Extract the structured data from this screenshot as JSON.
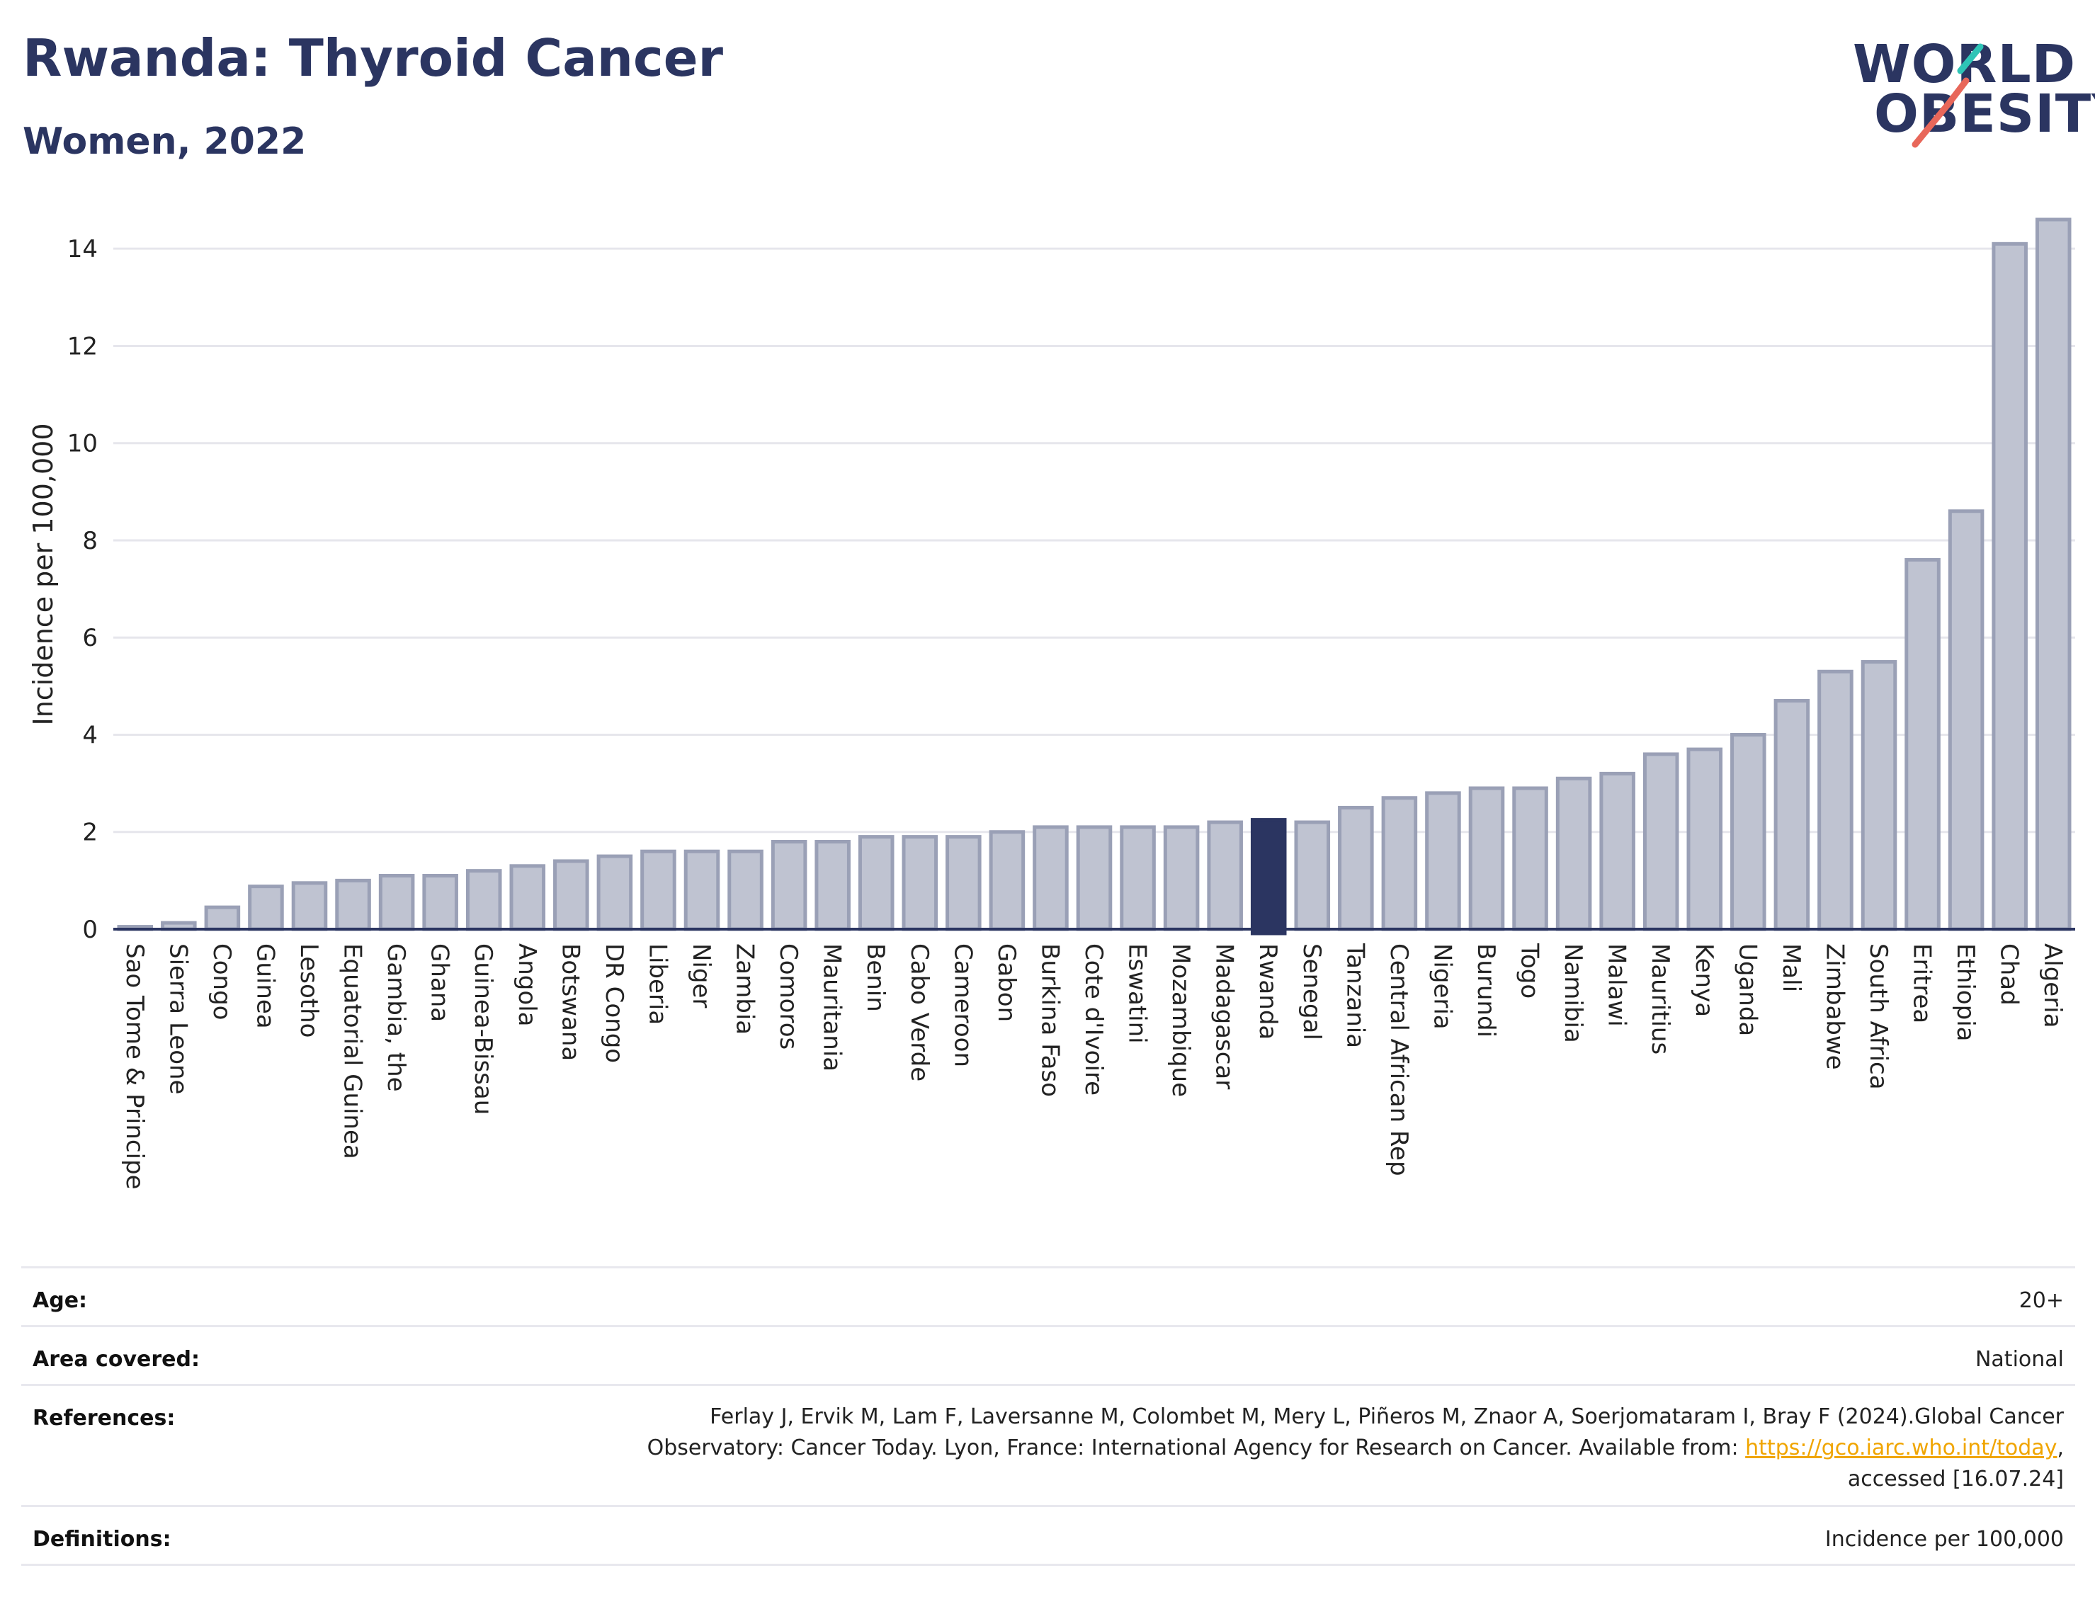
{
  "header": {
    "title": "Rwanda: Thyroid Cancer",
    "subtitle": "Women, 2022"
  },
  "logo": {
    "line1": "WORLD",
    "line2": "OBESITY",
    "slash_colors": [
      "#2ec4b6",
      "#e8675a"
    ]
  },
  "colors": {
    "bar_fill": "#bfc3d1",
    "bar_stroke": "#9aa0b6",
    "highlight_fill": "#2b3561",
    "axis": "#2b3561",
    "grid": "#e6e6ec",
    "text_dark": "#2b3561",
    "link": "#f0a500"
  },
  "chart_data": {
    "type": "bar",
    "title": "Rwanda: Thyroid Cancer",
    "subtitle": "Women, 2022",
    "ylabel": "Incidence per 100,000",
    "xlabel": "",
    "ylim": [
      0,
      14.6
    ],
    "yticks": [
      0,
      2,
      4,
      6,
      8,
      10,
      12,
      14
    ],
    "grid": true,
    "highlight": "Rwanda",
    "categories": [
      "Sao Tome & Principe",
      "Sierra Leone",
      "Congo",
      "Guinea",
      "Lesotho",
      "Equatorial Guinea",
      "Gambia, the",
      "Ghana",
      "Guinea-Bissau",
      "Angola",
      "Botswana",
      "DR Congo",
      "Liberia",
      "Niger",
      "Zambia",
      "Comoros",
      "Mauritania",
      "Benin",
      "Cabo Verde",
      "Cameroon",
      "Gabon",
      "Burkina Faso",
      "Cote d'Ivoire",
      "Eswatini",
      "Mozambique",
      "Madagascar",
      "Rwanda",
      "Senegal",
      "Tanzania",
      "Central African Rep",
      "Nigeria",
      "Burundi",
      "Togo",
      "Namibia",
      "Malawi",
      "Mauritius",
      "Kenya",
      "Uganda",
      "Mali",
      "Zimbabwe",
      "South Africa",
      "Eritrea",
      "Ethiopia",
      "Chad",
      "Algeria"
    ],
    "values": [
      0.05,
      0.13,
      0.45,
      0.88,
      0.95,
      1.0,
      1.1,
      1.1,
      1.2,
      1.3,
      1.4,
      1.5,
      1.6,
      1.6,
      1.6,
      1.8,
      1.8,
      1.9,
      1.9,
      1.9,
      2.0,
      2.1,
      2.1,
      2.1,
      2.1,
      2.2,
      2.25,
      2.2,
      2.5,
      2.7,
      2.8,
      2.9,
      2.9,
      3.1,
      3.2,
      3.6,
      3.7,
      4.0,
      4.7,
      5.3,
      5.5,
      7.6,
      8.6,
      14.1,
      14.6
    ]
  },
  "info": {
    "age_label": "Age:",
    "age_value": "20+",
    "area_label": "Area covered:",
    "area_value": "National",
    "references_label": "References:",
    "references_text1": "Ferlay J, Ervik M, Lam F, Laversanne M, Colombet M, Mery L, Piñeros M, Znaor A, Soerjomataram I, Bray F (2024).Global Cancer Observatory: Cancer Today. Lyon, France: International Agency for Research on Cancer. Available from: ",
    "references_link": "https://gco.iarc.who.int/today",
    "references_text2": ", accessed [16.07.24]",
    "definitions_label": "Definitions:",
    "definitions_value": "Incidence per 100,000"
  }
}
